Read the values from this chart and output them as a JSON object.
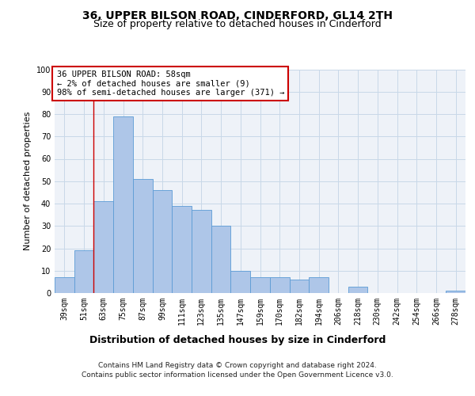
{
  "title": "36, UPPER BILSON ROAD, CINDERFORD, GL14 2TH",
  "subtitle": "Size of property relative to detached houses in Cinderford",
  "xlabel": "Distribution of detached houses by size in Cinderford",
  "ylabel": "Number of detached properties",
  "categories": [
    "39sqm",
    "51sqm",
    "63sqm",
    "75sqm",
    "87sqm",
    "99sqm",
    "111sqm",
    "123sqm",
    "135sqm",
    "147sqm",
    "159sqm",
    "170sqm",
    "182sqm",
    "194sqm",
    "206sqm",
    "218sqm",
    "230sqm",
    "242sqm",
    "254sqm",
    "266sqm",
    "278sqm"
  ],
  "values": [
    7,
    19,
    41,
    79,
    51,
    46,
    39,
    37,
    30,
    10,
    7,
    7,
    6,
    7,
    0,
    3,
    0,
    0,
    0,
    0,
    1
  ],
  "bar_color": "#aec6e8",
  "bar_edge_color": "#5b9bd5",
  "grid_color": "#c8d8e8",
  "background_color": "#eef2f8",
  "annotation_text": "36 UPPER BILSON ROAD: 58sqm\n← 2% of detached houses are smaller (9)\n98% of semi-detached houses are larger (371) →",
  "annotation_box_color": "#ffffff",
  "annotation_box_edge": "#cc0000",
  "vline_x": 1.5,
  "vline_color": "#cc0000",
  "ylim": [
    0,
    100
  ],
  "yticks": [
    0,
    10,
    20,
    30,
    40,
    50,
    60,
    70,
    80,
    90,
    100
  ],
  "footer1": "Contains HM Land Registry data © Crown copyright and database right 2024.",
  "footer2": "Contains public sector information licensed under the Open Government Licence v3.0.",
  "title_fontsize": 10,
  "subtitle_fontsize": 9,
  "xlabel_fontsize": 9,
  "ylabel_fontsize": 8,
  "tick_fontsize": 7,
  "annotation_fontsize": 7.5,
  "footer_fontsize": 6.5
}
